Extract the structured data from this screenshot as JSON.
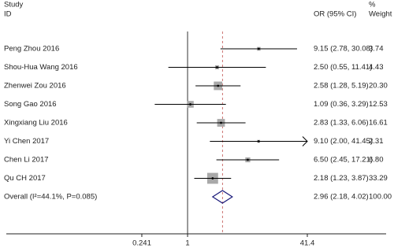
{
  "chart_data": {
    "type": "forest",
    "headers": {
      "study": [
        "Study",
        "ID"
      ],
      "or": "OR (95% CI)",
      "weight": [
        "%",
        "Weight"
      ]
    },
    "categories": [
      "Peng Zhou 2016",
      "Shou-Hua Wang 2016",
      "Zhenwei Zou 2016",
      "Song Gao 2016",
      "Xingxiang Liu 2016",
      "Yi Chen 2017",
      "Chen Li 2017",
      "Qu CH 2017"
    ],
    "values": [
      9.15,
      2.5,
      2.58,
      1.09,
      2.83,
      9.1,
      6.5,
      2.18
    ],
    "lower": [
      2.78,
      0.55,
      1.28,
      0.36,
      1.33,
      2.0,
      2.45,
      1.23
    ],
    "upper": [
      30.08,
      11.41,
      5.19,
      3.29,
      6.06,
      41.45,
      17.21,
      3.87
    ],
    "value_labels": [
      "9.15 (2.78, 30.08)",
      "2.50 (0.55, 11.41)",
      "2.58 (1.28, 5.19)",
      "1.09 (0.36, 3.29)",
      "2.83 (1.33, 6.06)",
      "9.10 (2.00, 41.45)",
      "6.50 (2.45, 17.21)",
      "2.18 (1.23, 3.87)"
    ],
    "weights": [
      3.74,
      4.43,
      20.3,
      12.53,
      16.61,
      2.31,
      6.8,
      33.29
    ],
    "weight_labels": [
      "3.74",
      "4.43",
      "20.30",
      "12.53",
      "16.61",
      "2.31",
      "6.80",
      "33.29"
    ],
    "overall": {
      "label": "Overall (I²=44.1%, P=0.085)",
      "value": 2.96,
      "lower": 2.18,
      "upper": 4.02,
      "value_label": "2.96 (2.18, 4.02)",
      "weight": 100,
      "weight_label": "100.00",
      "color": "#1a1a7a"
    },
    "xlim": [
      0.0241,
      41.4
    ],
    "xticks": [
      0.241,
      1,
      41.4
    ],
    "log_x": true,
    "box_color": "#a9a9a9"
  }
}
